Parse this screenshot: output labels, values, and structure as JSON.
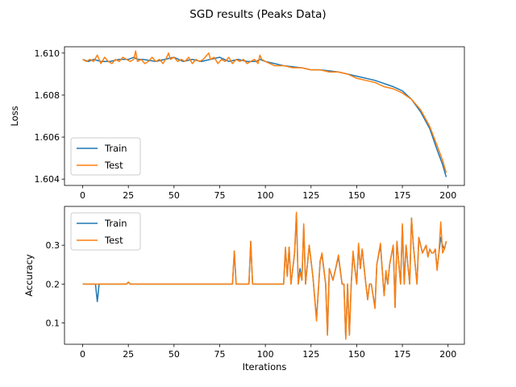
{
  "figure": {
    "title": "SGD results (Peaks Data)"
  },
  "chart_data": [
    {
      "type": "line",
      "xlabel": "",
      "ylabel": "Loss",
      "xlim": [
        -9.95,
        208.95
      ],
      "ylim": [
        1.6037,
        1.6103
      ],
      "xticks": [
        0,
        25,
        50,
        75,
        100,
        125,
        150,
        175,
        200
      ],
      "xtick_labels": [
        "0",
        "25",
        "50",
        "75",
        "100",
        "125",
        "150",
        "175",
        "200"
      ],
      "yticks": [
        1.604,
        1.606,
        1.608,
        1.61
      ],
      "ytick_labels": [
        "1.604",
        "1.606",
        "1.608",
        "1.610"
      ],
      "legend": {
        "position": "lower-left",
        "entries": [
          "Train",
          "Test"
        ]
      },
      "grid": false,
      "series": [
        {
          "name": "Train",
          "color": "#1f77b4",
          "x": [
            0,
            3,
            6,
            10,
            15,
            20,
            25,
            28,
            30,
            33,
            40,
            45,
            50,
            55,
            60,
            65,
            70,
            75,
            80,
            85,
            90,
            95,
            97,
            100,
            110,
            120,
            125,
            130,
            140,
            150,
            160,
            170,
            175,
            180,
            185,
            190,
            194,
            197,
            199
          ],
          "y": [
            1.6097,
            1.6096,
            1.6097,
            1.6096,
            1.6096,
            1.6097,
            1.6097,
            1.6098,
            1.6097,
            1.6097,
            1.6096,
            1.6097,
            1.6098,
            1.6096,
            1.6097,
            1.6096,
            1.6097,
            1.6098,
            1.6096,
            1.6097,
            1.6096,
            1.6096,
            1.6097,
            1.6096,
            1.6094,
            1.6093,
            1.6092,
            1.6092,
            1.6091,
            1.6089,
            1.6087,
            1.6084,
            1.6082,
            1.6078,
            1.6072,
            1.6064,
            1.6054,
            1.6047,
            1.6041
          ]
        },
        {
          "name": "Test",
          "color": "#ff7f0e",
          "x": [
            0,
            2,
            4,
            6,
            8,
            10,
            12,
            14,
            16,
            18,
            20,
            22,
            24,
            26,
            28,
            29,
            30,
            32,
            34,
            36,
            38,
            40,
            42,
            44,
            46,
            47,
            48,
            50,
            52,
            54,
            56,
            58,
            60,
            62,
            64,
            66,
            68,
            69,
            70,
            72,
            74,
            76,
            78,
            80,
            82,
            84,
            86,
            88,
            90,
            92,
            94,
            96,
            97,
            98,
            100,
            105,
            110,
            115,
            120,
            125,
            130,
            135,
            140,
            145,
            150,
            155,
            160,
            165,
            170,
            175,
            180,
            185,
            190,
            194,
            197,
            199
          ],
          "y": [
            1.6097,
            1.6096,
            1.6097,
            1.6096,
            1.6099,
            1.6095,
            1.6098,
            1.6096,
            1.6095,
            1.6097,
            1.6096,
            1.6098,
            1.6097,
            1.6096,
            1.6097,
            1.6101,
            1.6096,
            1.6097,
            1.6095,
            1.6096,
            1.6098,
            1.6096,
            1.6097,
            1.6095,
            1.6098,
            1.61,
            1.6097,
            1.6098,
            1.6096,
            1.6097,
            1.6096,
            1.6098,
            1.6095,
            1.6097,
            1.6096,
            1.6097,
            1.6099,
            1.61,
            1.6097,
            1.6098,
            1.6095,
            1.6097,
            1.6096,
            1.6098,
            1.6095,
            1.6097,
            1.6096,
            1.6097,
            1.6095,
            1.6096,
            1.6097,
            1.6095,
            1.6099,
            1.6097,
            1.6096,
            1.6094,
            1.6094,
            1.6093,
            1.6093,
            1.6092,
            1.6092,
            1.6091,
            1.6091,
            1.609,
            1.6088,
            1.6087,
            1.6086,
            1.6084,
            1.6083,
            1.6081,
            1.6078,
            1.6073,
            1.6065,
            1.6056,
            1.6049,
            1.6043
          ]
        }
      ]
    },
    {
      "type": "line",
      "xlabel": "Iterations",
      "ylabel": "Accuracy",
      "xlim": [
        -9.95,
        208.95
      ],
      "ylim": [
        0.045,
        0.4
      ],
      "xticks": [
        0,
        25,
        50,
        75,
        100,
        125,
        150,
        175,
        200
      ],
      "xtick_labels": [
        "0",
        "25",
        "50",
        "75",
        "100",
        "125",
        "150",
        "175",
        "200"
      ],
      "yticks": [
        0.1,
        0.2,
        0.3
      ],
      "ytick_labels": [
        "0.1",
        "0.2",
        "0.3"
      ],
      "legend": {
        "position": "upper-left",
        "entries": [
          "Train",
          "Test"
        ]
      },
      "grid": false,
      "series": [
        {
          "name": "Train",
          "color": "#1f77b4",
          "x": [
            0,
            7,
            8,
            9,
            24,
            25,
            26,
            82,
            83,
            84,
            91,
            92,
            93,
            110,
            111,
            112,
            113,
            114,
            116,
            117,
            118,
            119,
            120,
            121,
            122,
            124,
            126,
            128,
            130,
            131,
            133,
            134,
            135,
            137,
            138,
            140,
            142,
            143,
            144,
            145,
            146,
            147,
            148,
            150,
            151,
            152,
            153,
            155,
            156,
            157,
            158,
            160,
            161,
            163,
            165,
            166,
            167,
            168,
            170,
            171,
            172,
            174,
            175,
            176,
            177,
            179,
            180,
            181,
            183,
            184,
            185,
            186,
            188,
            189,
            190,
            191,
            192,
            193,
            194,
            195,
            196,
            197,
            198,
            199
          ],
          "y": [
            0.2,
            0.2,
            0.155,
            0.2,
            0.2,
            0.205,
            0.2,
            0.2,
            0.285,
            0.2,
            0.2,
            0.31,
            0.2,
            0.2,
            0.29,
            0.22,
            0.295,
            0.2,
            0.28,
            0.38,
            0.2,
            0.24,
            0.21,
            0.35,
            0.2,
            0.3,
            0.22,
            0.11,
            0.26,
            0.275,
            0.2,
            0.07,
            0.24,
            0.21,
            0.23,
            0.27,
            0.2,
            0.2,
            0.06,
            0.2,
            0.07,
            0.2,
            0.28,
            0.2,
            0.3,
            0.24,
            0.29,
            0.2,
            0.16,
            0.2,
            0.2,
            0.14,
            0.25,
            0.3,
            0.17,
            0.23,
            0.2,
            0.25,
            0.3,
            0.14,
            0.31,
            0.2,
            0.35,
            0.2,
            0.3,
            0.2,
            0.37,
            0.3,
            0.2,
            0.32,
            0.3,
            0.28,
            0.3,
            0.27,
            0.29,
            0.28,
            0.28,
            0.29,
            0.24,
            0.28,
            0.32,
            0.3,
            0.29,
            0.31
          ]
        },
        {
          "name": "Test",
          "color": "#ff7f0e",
          "x": [
            0,
            7,
            8,
            9,
            24,
            25,
            26,
            82,
            83,
            84,
            91,
            92,
            93,
            110,
            111,
            112,
            113,
            114,
            116,
            117,
            118,
            119,
            120,
            121,
            122,
            124,
            126,
            128,
            130,
            131,
            133,
            134,
            135,
            137,
            138,
            140,
            142,
            143,
            144,
            145,
            146,
            147,
            148,
            150,
            151,
            152,
            153,
            155,
            156,
            157,
            158,
            160,
            161,
            163,
            165,
            166,
            167,
            168,
            170,
            171,
            172,
            174,
            175,
            176,
            177,
            179,
            180,
            181,
            183,
            184,
            185,
            186,
            188,
            189,
            190,
            191,
            192,
            193,
            194,
            195,
            196,
            197,
            198,
            199
          ],
          "y": [
            0.2,
            0.2,
            0.2,
            0.2,
            0.2,
            0.205,
            0.2,
            0.2,
            0.285,
            0.2,
            0.2,
            0.31,
            0.2,
            0.2,
            0.295,
            0.22,
            0.295,
            0.2,
            0.28,
            0.385,
            0.2,
            0.23,
            0.21,
            0.355,
            0.2,
            0.3,
            0.22,
            0.105,
            0.26,
            0.28,
            0.2,
            0.068,
            0.24,
            0.21,
            0.23,
            0.275,
            0.2,
            0.2,
            0.058,
            0.2,
            0.068,
            0.2,
            0.285,
            0.2,
            0.305,
            0.24,
            0.29,
            0.2,
            0.16,
            0.2,
            0.2,
            0.137,
            0.25,
            0.305,
            0.17,
            0.235,
            0.2,
            0.25,
            0.3,
            0.14,
            0.31,
            0.2,
            0.355,
            0.2,
            0.3,
            0.2,
            0.37,
            0.3,
            0.2,
            0.32,
            0.3,
            0.28,
            0.3,
            0.27,
            0.29,
            0.28,
            0.28,
            0.29,
            0.235,
            0.28,
            0.36,
            0.28,
            0.29,
            0.31
          ]
        }
      ]
    }
  ]
}
